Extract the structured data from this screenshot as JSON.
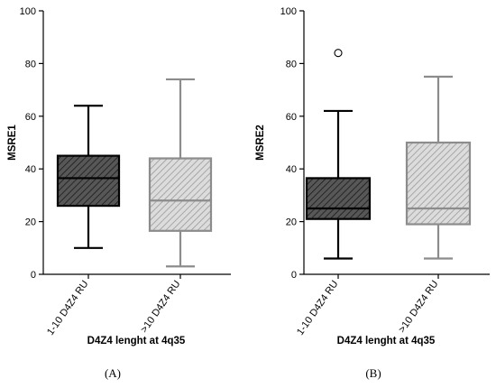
{
  "chart_data": [
    {
      "type": "box",
      "panel_label": "(A)",
      "xlabel": "D4Z4 lenght at 4q35",
      "ylabel": "MSRE1",
      "ylim": [
        0,
        100
      ],
      "yticks": [
        0,
        20,
        40,
        60,
        80,
        100
      ],
      "categories": [
        "1-10 D4Z4 RU",
        ">10 D4Z4 RU"
      ],
      "boxes": [
        {
          "min": 10,
          "q1": 26,
          "median": 36.5,
          "q3": 45,
          "max": 64,
          "outliers": [],
          "fill": "#575757",
          "stroke": "#000000"
        },
        {
          "min": 3,
          "q1": 16.5,
          "median": 28,
          "q3": 44,
          "max": 74,
          "outliers": [],
          "fill": "#d9d9d9",
          "stroke": "#8c8c8c"
        }
      ]
    },
    {
      "type": "box",
      "panel_label": "(B)",
      "xlabel": "D4Z4 lenght at 4q35",
      "ylabel": "MSRE2",
      "ylim": [
        0,
        100
      ],
      "yticks": [
        0,
        20,
        40,
        60,
        80,
        100
      ],
      "categories": [
        "1-10 D4Z4 RU",
        ">10 D4Z4 RU"
      ],
      "boxes": [
        {
          "min": 6,
          "q1": 21,
          "median": 25,
          "q3": 36.5,
          "max": 62,
          "outliers": [
            84
          ],
          "fill": "#575757",
          "stroke": "#000000"
        },
        {
          "min": 6,
          "q1": 19,
          "median": 25,
          "q3": 50,
          "max": 75,
          "outliers": [],
          "fill": "#d9d9d9",
          "stroke": "#8c8c8c"
        }
      ]
    }
  ]
}
